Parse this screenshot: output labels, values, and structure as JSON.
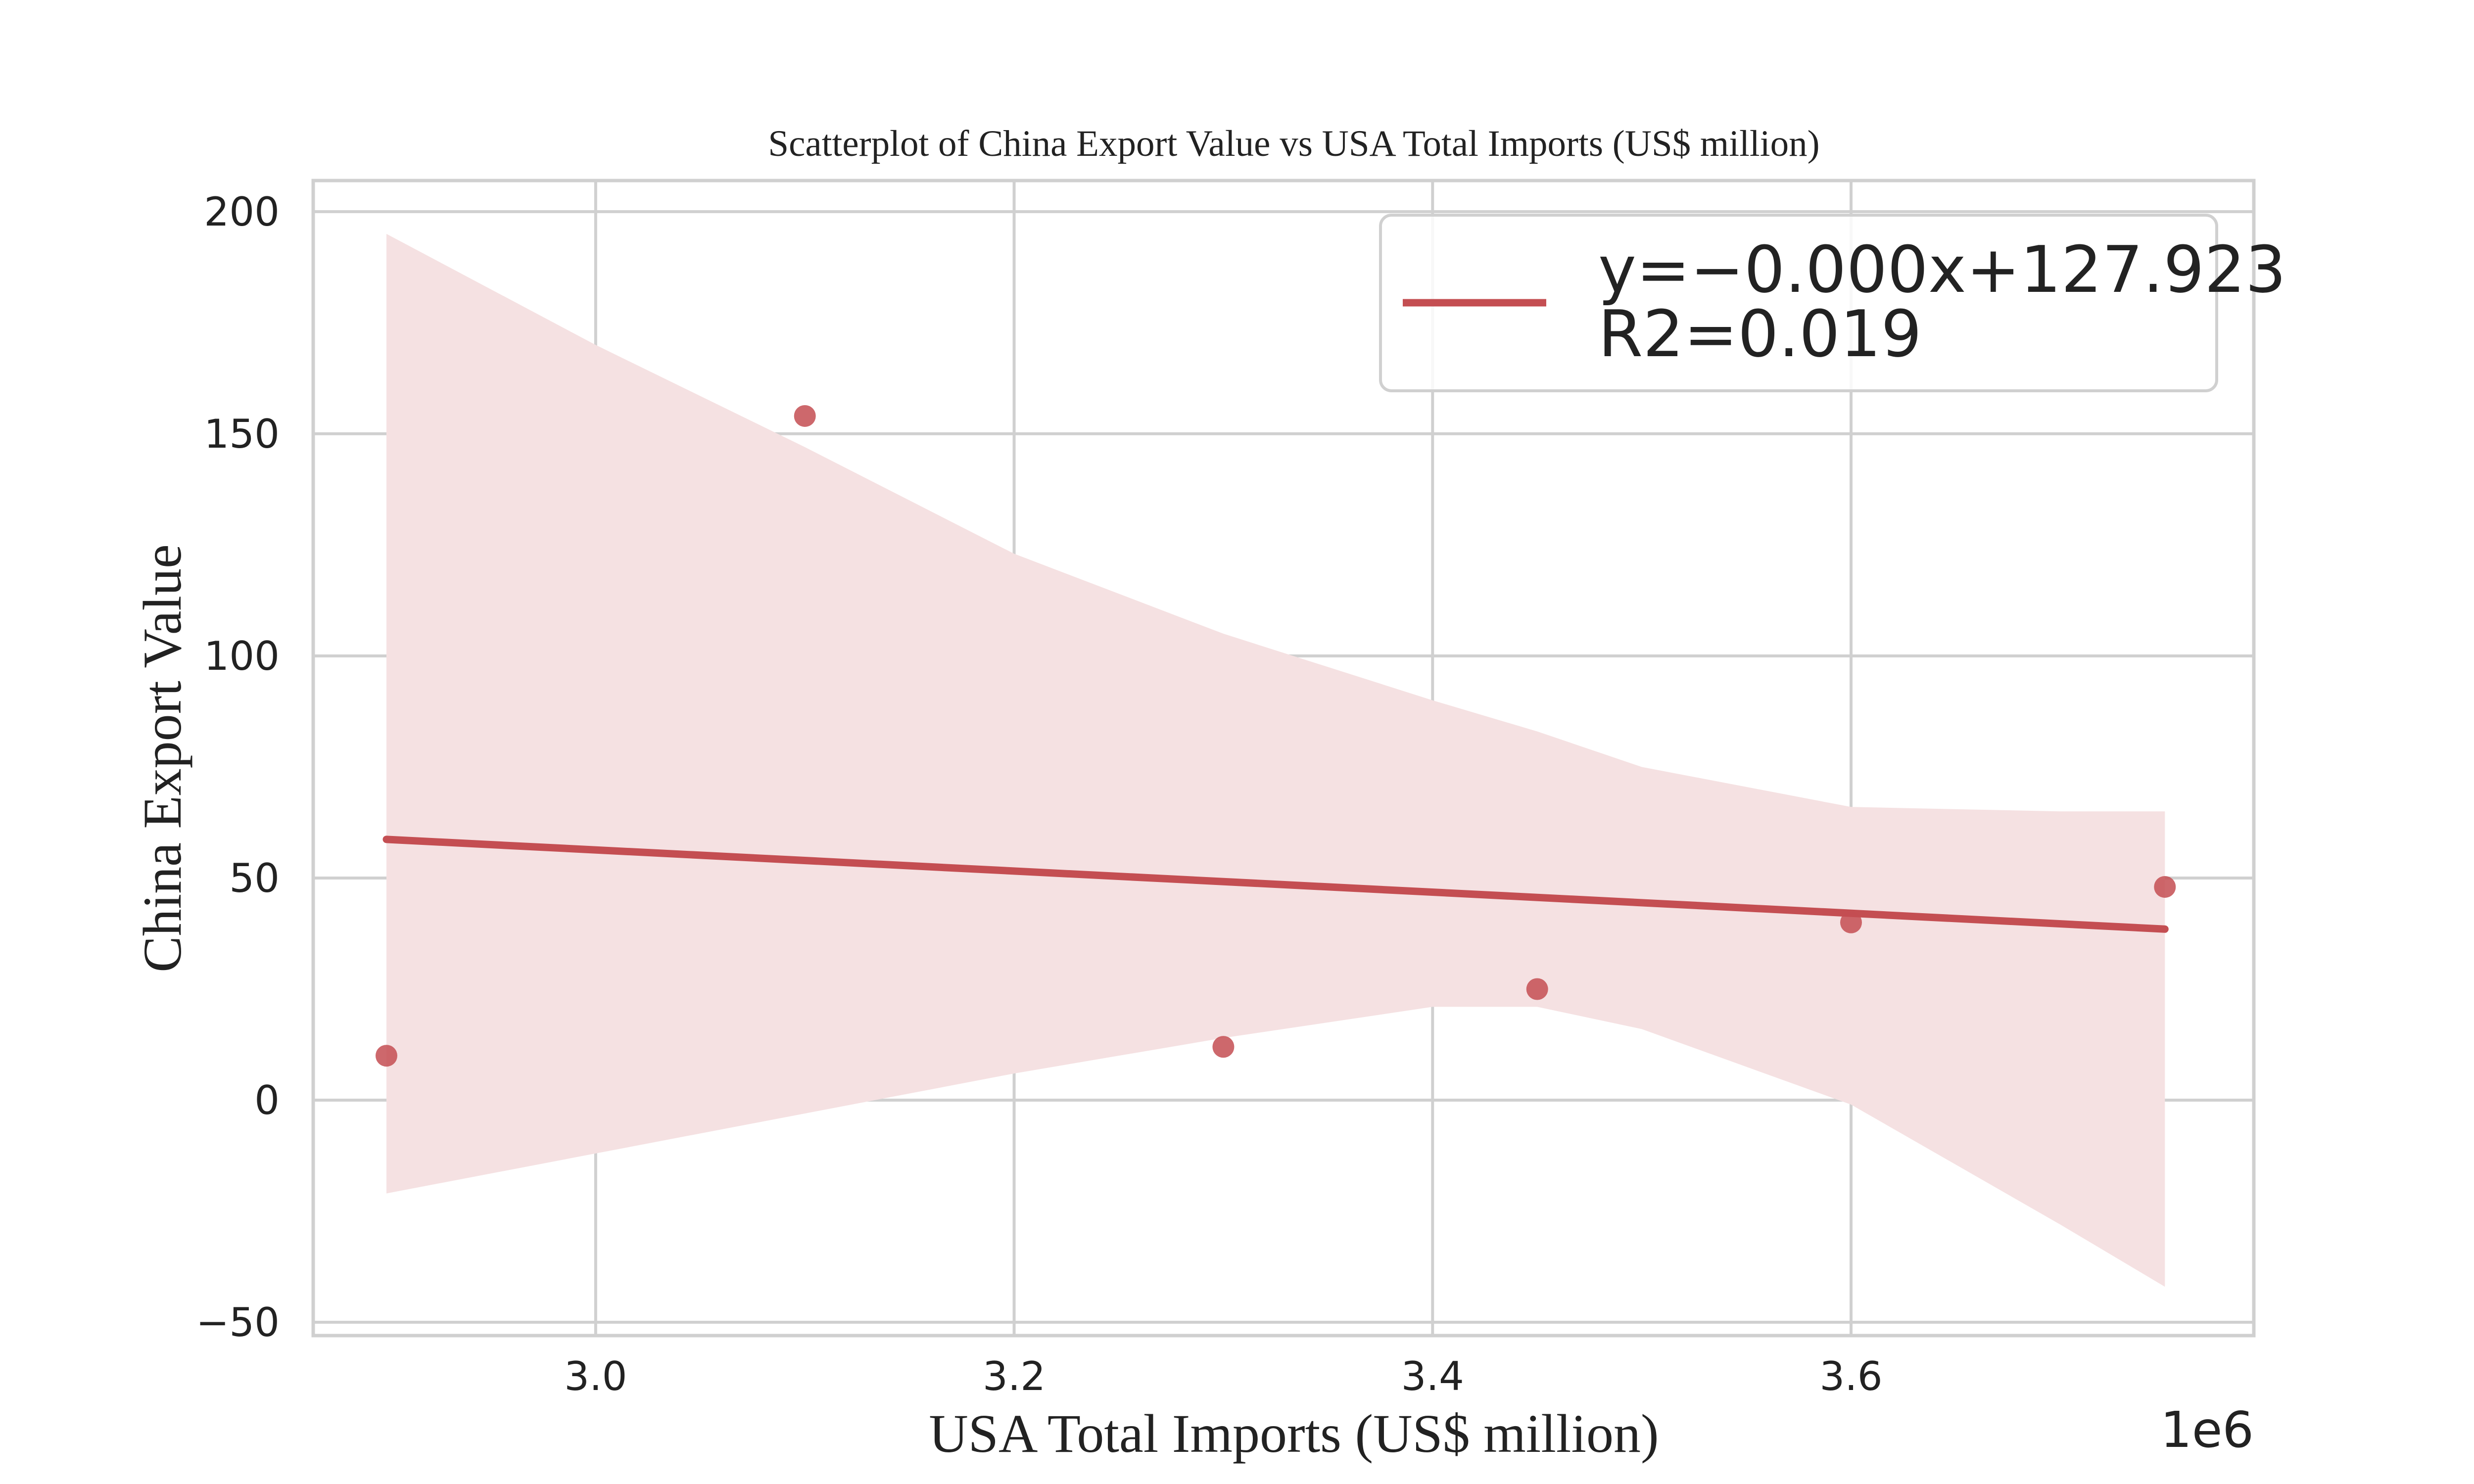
{
  "chart_data": {
    "type": "scatter",
    "title": "Scatterplot of China Export Value vs USA Total Imports (US$ million)",
    "xlabel": "USA Total Imports (US$ million)",
    "ylabel": "China Export Value",
    "x_offset_label": "1e6",
    "xlim": [
      2.865,
      3.7925
    ],
    "ylim": [
      -53,
      207
    ],
    "xticks": [
      3.0,
      3.2,
      3.4,
      3.6
    ],
    "xtick_labels": [
      "3.0",
      "3.2",
      "3.4",
      "3.6"
    ],
    "yticks": [
      -50,
      0,
      50,
      100,
      150,
      200
    ],
    "ytick_labels": [
      "−50",
      "0",
      "50",
      "100",
      "150",
      "200"
    ],
    "grid": true,
    "legend_position": "top-right",
    "points": {
      "x": [
        2.9,
        3.1,
        3.3,
        3.45,
        3.6,
        3.75
      ],
      "y": [
        10,
        154,
        12,
        25,
        40,
        48
      ]
    },
    "regression": {
      "label_line1": "y=−0.000x+127.923",
      "label_line2": "R2=0.019",
      "x": [
        2.9,
        3.75
      ],
      "y": [
        58.7,
        38.5
      ]
    },
    "confidence_band": {
      "x": [
        2.9,
        3.0,
        3.1,
        3.2,
        3.3,
        3.4,
        3.45,
        3.5,
        3.6,
        3.7,
        3.75
      ],
      "upper": [
        195,
        170,
        147,
        123,
        105,
        90,
        83,
        75,
        66,
        65,
        65
      ],
      "lower": [
        -21,
        -12,
        -3,
        6,
        14,
        21,
        21,
        16,
        -1,
        -28,
        -42
      ]
    },
    "colors": {
      "series": "#c44e52",
      "band": "#f5e1e2",
      "grid": "#d0d0d0",
      "frame": "#d0d0d0"
    }
  }
}
